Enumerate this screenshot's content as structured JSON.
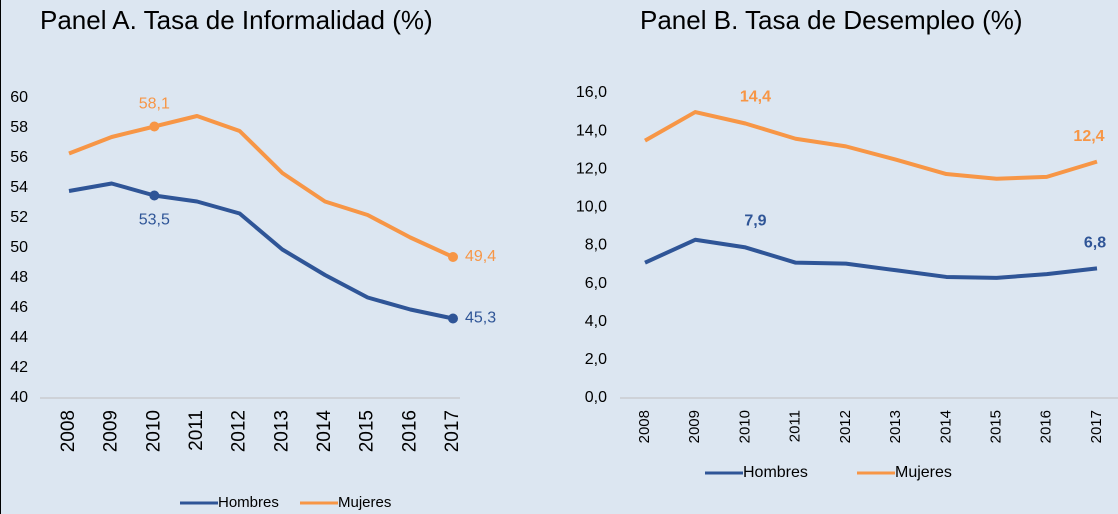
{
  "chart_data": [
    {
      "type": "line",
      "title": "Panel A. Tasa de Informalidad (%)",
      "categories": [
        "2008",
        "2009",
        "2010",
        "2011",
        "2012",
        "2013",
        "2014",
        "2015",
        "2016",
        "2017"
      ],
      "series": [
        {
          "name": "Hombres",
          "color": "#2f5597",
          "values": [
            53.8,
            54.3,
            53.5,
            53.1,
            52.3,
            49.9,
            48.2,
            46.7,
            45.9,
            45.3
          ],
          "value_labels": [
            null,
            null,
            "53,5",
            null,
            null,
            null,
            null,
            null,
            null,
            "45,3"
          ]
        },
        {
          "name": "Mujeres",
          "color": "#f79646",
          "values": [
            56.3,
            57.4,
            58.1,
            58.8,
            57.8,
            55.0,
            53.1,
            52.2,
            50.7,
            49.4
          ],
          "value_labels": [
            null,
            null,
            "58,1",
            null,
            null,
            null,
            null,
            null,
            null,
            "49,4"
          ]
        }
      ],
      "ylim": [
        40,
        60
      ],
      "yticks": [
        40,
        42,
        44,
        46,
        48,
        50,
        52,
        54,
        56,
        58,
        60
      ],
      "label_markers": true,
      "label_bold": false,
      "legend": "bottom"
    },
    {
      "type": "line",
      "title": "Panel B. Tasa de Desempleo (%)",
      "categories": [
        "2008",
        "2009",
        "2010",
        "2011",
        "2012",
        "2013",
        "2014",
        "2015",
        "2016",
        "2017"
      ],
      "series": [
        {
          "name": "Hombres",
          "color": "#2f5597",
          "values": [
            7.1,
            8.3,
            7.9,
            7.1,
            7.05,
            6.7,
            6.35,
            6.3,
            6.5,
            6.8
          ],
          "value_labels": [
            null,
            null,
            "7,9",
            null,
            null,
            null,
            null,
            null,
            null,
            "6,8"
          ]
        },
        {
          "name": "Mujeres",
          "color": "#f79646",
          "values": [
            13.5,
            15.0,
            14.4,
            13.6,
            13.2,
            12.5,
            11.75,
            11.5,
            11.6,
            12.4
          ],
          "value_labels": [
            null,
            null,
            "14,4",
            null,
            null,
            null,
            null,
            null,
            null,
            "12,4"
          ]
        }
      ],
      "ylim": [
        0,
        16
      ],
      "yticks": [
        {
          "value": 0,
          "label": "0,0"
        },
        {
          "value": 2,
          "label": "2,0"
        },
        {
          "value": 4,
          "label": "4,0"
        },
        {
          "value": 6,
          "label": "6,0"
        },
        {
          "value": 8,
          "label": "8,0"
        },
        {
          "value": 10,
          "label": "10,0"
        },
        {
          "value": 12,
          "label": "12,0"
        },
        {
          "value": 14,
          "label": "14,0"
        },
        {
          "value": 16,
          "label": "16,0"
        }
      ],
      "label_markers": false,
      "label_bold": true,
      "legend": "bottom"
    }
  ]
}
